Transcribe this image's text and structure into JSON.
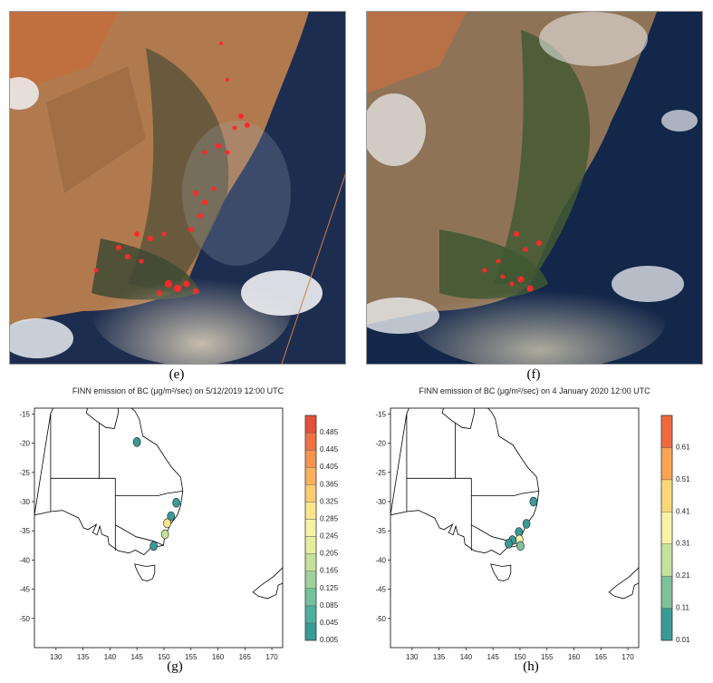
{
  "panels": {
    "e": {
      "label": "(e)"
    },
    "f": {
      "label": "(f)"
    },
    "g": {
      "label": "(g)"
    },
    "h": {
      "label": "(h)"
    }
  },
  "chart_data": [
    {
      "type": "heatmap",
      "panel": "g",
      "title": "FINN emission of BC (μg/m²/sec) on 5/12/2019 12:00 UTC",
      "xlabel": "",
      "ylabel": "",
      "xlim": [
        126,
        172
      ],
      "ylim": [
        -55,
        -14
      ],
      "x_ticks": [
        130,
        135,
        140,
        145,
        150,
        155,
        160,
        165,
        170
      ],
      "y_ticks": [
        -15,
        -20,
        -25,
        -30,
        -35,
        -40,
        -45,
        -50
      ],
      "colorbar": {
        "levels": [
          0.005,
          0.045,
          0.085,
          0.125,
          0.165,
          0.205,
          0.245,
          0.285,
          0.325,
          0.365,
          0.405,
          0.445,
          0.485
        ],
        "colors": [
          "#3a9a96",
          "#4fae9c",
          "#74c19d",
          "#9fd29c",
          "#c6e29a",
          "#e4ef9e",
          "#f7f3a4",
          "#fbe58c",
          "#fbcd72",
          "#f9b15e",
          "#f5934f",
          "#ee7245",
          "#e5503b"
        ]
      },
      "emission_spots": [
        {
          "lon": 145.0,
          "lat": -19.8,
          "value": 0.03
        },
        {
          "lon": 152.3,
          "lat": -30.2,
          "value": 0.03
        },
        {
          "lon": 151.3,
          "lat": -32.5,
          "value": 0.03
        },
        {
          "lon": 150.6,
          "lat": -33.7,
          "value": 0.3
        },
        {
          "lon": 150.2,
          "lat": -35.6,
          "value": 0.2
        },
        {
          "lon": 148.1,
          "lat": -37.6,
          "value": 0.03
        }
      ]
    },
    {
      "type": "heatmap",
      "panel": "h",
      "title": "FINN emission of BC (μg/m²/sec) on 4 January 2020 12:00 UTC",
      "xlabel": "",
      "ylabel": "",
      "xlim": [
        126,
        172
      ],
      "ylim": [
        -55,
        -14
      ],
      "x_ticks": [
        130,
        135,
        140,
        145,
        150,
        155,
        160,
        165,
        170
      ],
      "y_ticks": [
        -15,
        -20,
        -25,
        -30,
        -35,
        -40,
        -45,
        -50
      ],
      "colorbar": {
        "levels": [
          0.01,
          0.11,
          0.21,
          0.31,
          0.41,
          0.51,
          0.61
        ],
        "colors": [
          "#3a9a96",
          "#7ec19c",
          "#c4e29c",
          "#f7f3a8",
          "#fbd77a",
          "#f8a454",
          "#ee6a3e"
        ]
      },
      "emission_spots": [
        {
          "lon": 152.5,
          "lat": -30.0,
          "value": 0.05
        },
        {
          "lon": 151.2,
          "lat": -33.8,
          "value": 0.05
        },
        {
          "lon": 149.8,
          "lat": -35.2,
          "value": 0.05
        },
        {
          "lon": 149.9,
          "lat": -36.5,
          "value": 0.4
        },
        {
          "lon": 148.6,
          "lat": -36.6,
          "value": 0.05
        },
        {
          "lon": 147.9,
          "lat": -37.2,
          "value": 0.05
        },
        {
          "lon": 150.1,
          "lat": -37.6,
          "value": 0.2
        }
      ]
    }
  ]
}
